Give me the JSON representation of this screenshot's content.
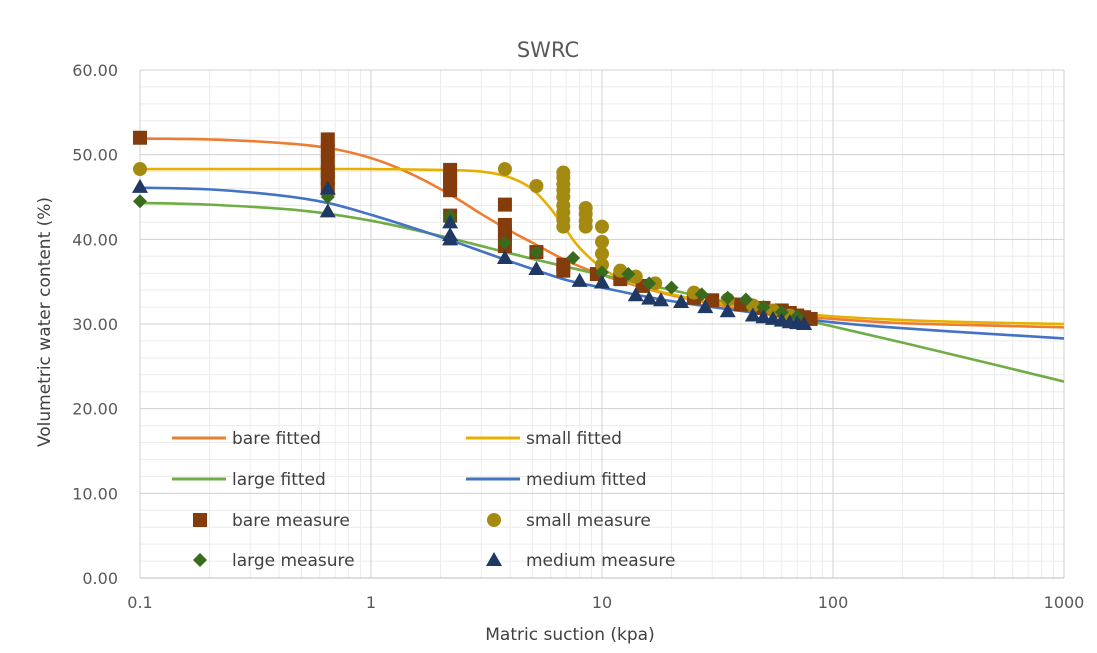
{
  "chart_data": {
    "type": "scatter",
    "title": "SWRC",
    "xlabel": "Matric suction (kpa)",
    "ylabel": "Volumetric water content (%)",
    "x_scale": "log",
    "xlim": [
      0.1,
      1000
    ],
    "ylim": [
      0,
      60
    ],
    "x_ticks": [
      "0.1",
      "1",
      "10",
      "100",
      "1000"
    ],
    "y_ticks": [
      "0.00",
      "10.00",
      "20.00",
      "30.00",
      "40.00",
      "50.00",
      "60.00"
    ],
    "grid": "major and minor, log x",
    "legend_position": "lower-left inside plot",
    "series": [
      {
        "name": "bare fitted",
        "kind": "line",
        "color": "#ED7D31",
        "x": [
          0.1,
          0.2,
          0.4,
          0.65,
          1,
          1.5,
          2.2,
          3,
          4,
          5,
          7,
          10,
          15,
          20,
          30,
          50,
          80,
          100,
          200,
          500,
          1000
        ],
        "y": [
          51.9,
          51.8,
          51.4,
          50.8,
          49.6,
          47.7,
          45.3,
          43.0,
          41.0,
          39.6,
          37.5,
          35.8,
          34.3,
          33.4,
          32.4,
          31.4,
          30.8,
          30.6,
          30.1,
          29.8,
          29.6
        ]
      },
      {
        "name": "small fitted",
        "kind": "line",
        "color": "#E6B000",
        "x": [
          0.1,
          0.5,
          1,
          2,
          3,
          4,
          5,
          6,
          7,
          8,
          10,
          12,
          15,
          20,
          30,
          50,
          100,
          300,
          1000
        ],
        "y": [
          48.3,
          48.3,
          48.3,
          48.2,
          48.0,
          47.3,
          45.9,
          43.6,
          41.1,
          39.0,
          36.6,
          35.4,
          34.4,
          33.5,
          32.6,
          31.7,
          30.9,
          30.3,
          30.0
        ]
      },
      {
        "name": "large fitted",
        "kind": "line",
        "color": "#70AD47",
        "x": [
          0.1,
          0.2,
          0.5,
          1,
          2,
          5,
          10,
          20,
          50,
          100,
          200,
          500,
          1000
        ],
        "y": [
          44.3,
          44.1,
          43.4,
          42.2,
          40.4,
          37.7,
          35.8,
          34.0,
          31.6,
          29.7,
          27.8,
          25.2,
          23.2
        ]
      },
      {
        "name": "medium fitted",
        "kind": "line",
        "color": "#4472C4",
        "x": [
          0.1,
          0.2,
          0.4,
          0.65,
          1,
          1.5,
          2.2,
          3,
          4,
          5,
          7,
          10,
          15,
          20,
          30,
          50,
          100,
          200,
          500,
          1000
        ],
        "y": [
          46.1,
          45.9,
          45.2,
          44.3,
          42.9,
          41.4,
          39.9,
          38.6,
          37.4,
          36.5,
          35.2,
          34.3,
          33.3,
          32.7,
          32.0,
          31.2,
          30.2,
          29.5,
          28.8,
          28.3
        ]
      },
      {
        "name": "bare measure",
        "kind": "marker",
        "marker": "square",
        "color": "#843C0C",
        "x": [
          0.1,
          0.65,
          0.65,
          0.65,
          0.65,
          0.65,
          0.65,
          2.2,
          2.2,
          2.2,
          2.2,
          2.2,
          3.8,
          3.8,
          3.8,
          3.8,
          3.8,
          5.2,
          6.8,
          6.8,
          9.5,
          12,
          15,
          25,
          30,
          40,
          50,
          60,
          65,
          70,
          75,
          80
        ],
        "y": [
          52.0,
          51.8,
          50.5,
          49.0,
          48.0,
          47.2,
          46.0,
          48.2,
          47.3,
          46.5,
          45.8,
          42.8,
          44.1,
          41.7,
          40.9,
          40.1,
          39.2,
          38.5,
          37.0,
          36.3,
          35.9,
          35.3,
          34.5,
          33.1,
          32.8,
          32.3,
          31.9,
          31.6,
          31.3,
          31.0,
          30.8,
          30.6
        ]
      },
      {
        "name": "small measure",
        "kind": "marker",
        "marker": "circle",
        "color": "#A58A12",
        "x": [
          0.1,
          3.8,
          5.2,
          6.8,
          6.8,
          6.8,
          6.8,
          6.8,
          6.8,
          6.8,
          6.8,
          6.8,
          8.5,
          8.5,
          8.5,
          8.5,
          10,
          10,
          10,
          10,
          12,
          14,
          17,
          25,
          35,
          45,
          55,
          65
        ],
        "y": [
          48.3,
          48.3,
          46.3,
          47.9,
          47.3,
          46.5,
          45.8,
          45.0,
          44.0,
          43.2,
          42.3,
          41.5,
          43.7,
          43.0,
          42.2,
          41.5,
          41.5,
          39.7,
          38.3,
          37.0,
          36.3,
          35.6,
          34.8,
          33.7,
          32.9,
          32.2,
          31.6,
          31.0
        ]
      },
      {
        "name": "large measure",
        "kind": "marker",
        "marker": "diamond",
        "color": "#3A6A1E",
        "x": [
          0.1,
          0.65,
          2.2,
          2.2,
          3.8,
          5.2,
          7.5,
          10,
          13,
          16,
          20,
          27,
          35,
          42,
          50,
          60,
          70
        ],
        "y": [
          44.5,
          45.0,
          42.8,
          42.2,
          39.6,
          38.5,
          37.8,
          36.1,
          35.9,
          34.8,
          34.3,
          33.5,
          33.1,
          32.9,
          32.0,
          31.4,
          30.9
        ]
      },
      {
        "name": "medium measure",
        "kind": "marker",
        "marker": "triangle",
        "color": "#1F3864",
        "x": [
          0.1,
          0.65,
          0.65,
          2.2,
          2.2,
          2.2,
          3.8,
          5.2,
          8,
          10,
          14,
          16,
          18,
          22,
          28,
          35,
          45,
          50,
          55,
          60,
          65,
          70,
          75
        ],
        "y": [
          46.2,
          46.0,
          43.3,
          42.0,
          40.5,
          40.0,
          37.8,
          36.5,
          35.1,
          34.9,
          33.4,
          33.0,
          32.8,
          32.6,
          32.0,
          31.5,
          31.0,
          30.8,
          30.6,
          30.4,
          30.2,
          30.1,
          30.0
        ]
      }
    ]
  }
}
